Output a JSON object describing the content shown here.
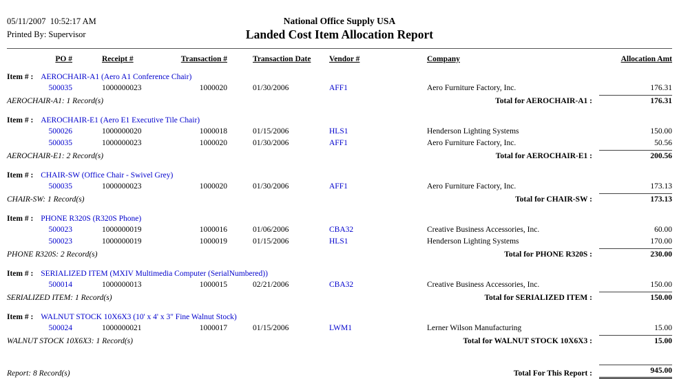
{
  "header": {
    "date_time": "05/11/2007  10:52:17 AM",
    "printed_by": "Printed By: Supervisor",
    "company_name": "National Office Supply USA",
    "report_title": "Landed Cost Item Allocation Report"
  },
  "labels": {
    "item_prefix": "Item # :"
  },
  "columns": {
    "po": "PO #",
    "receipt": "Receipt #",
    "transaction": "Transaction #",
    "transaction_date": "Transaction Date",
    "vendor": "Vendor #",
    "company": "Company",
    "allocation_amt": "Allocation Amt"
  },
  "groups": [
    {
      "item_name": "AEROCHAIR-A1 (Aero A1 Conference Chair)",
      "rows": [
        {
          "po": "500035",
          "receipt": "1000000023",
          "transaction": "1000020",
          "date": "01/30/2006",
          "vendor": "AFF1",
          "company": "Aero Furniture Factory, Inc.",
          "amount": "176.31"
        }
      ],
      "record_summary": "AEROCHAIR-A1: 1 Record(s)",
      "total_label": "Total for AEROCHAIR-A1 :",
      "total_amount": "176.31"
    },
    {
      "item_name": "AEROCHAIR-E1 (Aero E1 Executive Tile Chair)",
      "rows": [
        {
          "po": "500026",
          "receipt": "1000000020",
          "transaction": "1000018",
          "date": "01/15/2006",
          "vendor": "HLS1",
          "company": "Henderson Lighting Systems",
          "amount": "150.00"
        },
        {
          "po": "500035",
          "receipt": "1000000023",
          "transaction": "1000020",
          "date": "01/30/2006",
          "vendor": "AFF1",
          "company": "Aero Furniture Factory, Inc.",
          "amount": "50.56"
        }
      ],
      "record_summary": "AEROCHAIR-E1: 2 Record(s)",
      "total_label": "Total for AEROCHAIR-E1 :",
      "total_amount": "200.56"
    },
    {
      "item_name": "CHAIR-SW (Office Chair - Swivel Grey)",
      "rows": [
        {
          "po": "500035",
          "receipt": "1000000023",
          "transaction": "1000020",
          "date": "01/30/2006",
          "vendor": "AFF1",
          "company": "Aero Furniture Factory, Inc.",
          "amount": "173.13"
        }
      ],
      "record_summary": "CHAIR-SW: 1 Record(s)",
      "total_label": "Total for CHAIR-SW :",
      "total_amount": "173.13"
    },
    {
      "item_name": "PHONE R320S (R320S Phone)",
      "rows": [
        {
          "po": "500023",
          "receipt": "1000000019",
          "transaction": "1000016",
          "date": "01/06/2006",
          "vendor": "CBA32",
          "company": "Creative Business Accessories, Inc.",
          "amount": "60.00"
        },
        {
          "po": "500023",
          "receipt": "1000000019",
          "transaction": "1000019",
          "date": "01/15/2006",
          "vendor": "HLS1",
          "company": "Henderson Lighting Systems",
          "amount": "170.00"
        }
      ],
      "record_summary": "PHONE R320S: 2 Record(s)",
      "total_label": "Total for PHONE R320S :",
      "total_amount": "230.00"
    },
    {
      "item_name": "SERIALIZED ITEM (MXIV Multimedia Computer (SerialNumbered))",
      "rows": [
        {
          "po": "500014",
          "receipt": "1000000013",
          "transaction": "1000015",
          "date": "02/21/2006",
          "vendor": "CBA32",
          "company": "Creative Business Accessories, Inc.",
          "amount": "150.00"
        }
      ],
      "record_summary": "SERIALIZED ITEM: 1 Record(s)",
      "total_label": "Total for SERIALIZED ITEM :",
      "total_amount": "150.00"
    },
    {
      "item_name": "WALNUT STOCK 10X6X3 (10' x 4' x 3\" Fine Walnut Stock)",
      "rows": [
        {
          "po": "500024",
          "receipt": "1000000021",
          "transaction": "1000017",
          "date": "01/15/2006",
          "vendor": "LWM1",
          "company": "Lerner Wilson Manufacturing",
          "amount": "15.00"
        }
      ],
      "record_summary": "WALNUT STOCK 10X6X3: 1 Record(s)",
      "total_label": "Total for WALNUT STOCK 10X6X3 :",
      "total_amount": "15.00"
    }
  ],
  "report_footer": {
    "record_summary": "Report: 8 Record(s)",
    "total_label": "Total For This Report :",
    "total_amount": "945.00"
  },
  "colors": {
    "link_blue": "#0000CC"
  }
}
